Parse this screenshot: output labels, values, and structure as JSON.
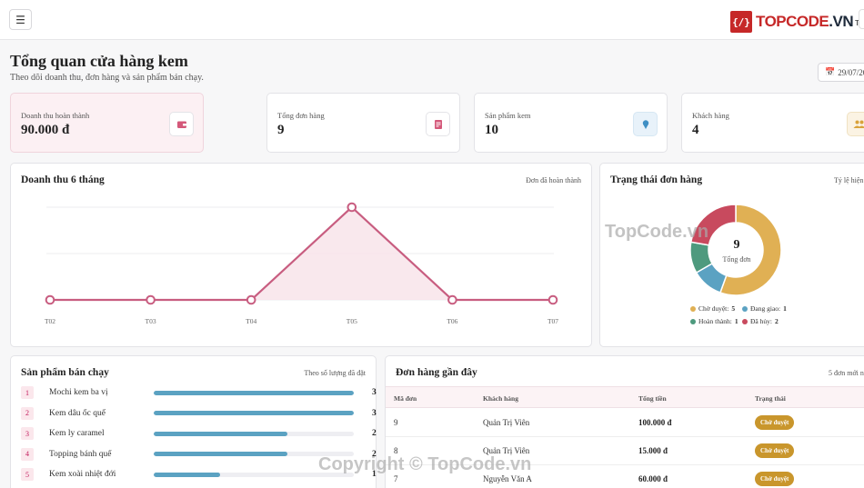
{
  "header": {
    "menu_icon": "hamburger-icon",
    "logo_mark": "{/}",
    "logo_red": "TOPCODE",
    "logo_dark": ".VN",
    "logo_suffix": "Tiền"
  },
  "page": {
    "title": "Tổng quan cửa hàng kem",
    "subtitle": "Theo dõi doanh thu, đơn hàng và sản phẩm bán chạy.",
    "date": "29/07/20"
  },
  "stats": [
    {
      "label": "Doanh thu hoàn thành",
      "value": "90.000 đ",
      "icon": "wallet-icon",
      "color": "#d4587a"
    },
    {
      "label": "Tổng đơn hàng",
      "value": "9",
      "icon": "receipt-icon",
      "color": "#d4587a"
    },
    {
      "label": "Sản phẩm kem",
      "value": "10",
      "icon": "ice-cream-icon",
      "color": "#3f8fc4"
    },
    {
      "label": "Khách hàng",
      "value": "4",
      "icon": "users-icon",
      "color": "#d9a23a"
    }
  ],
  "revenue": {
    "title": "Doanh thu 6 tháng",
    "note": "Đơn đã hoàn thành"
  },
  "chart_data": {
    "type": "area",
    "categories": [
      "T02",
      "T03",
      "T04",
      "T05",
      "T06",
      "T07"
    ],
    "values": [
      0,
      0,
      0,
      90000,
      0,
      0
    ],
    "ylim": [
      0,
      90000
    ],
    "grid": true,
    "color": "#c85d80"
  },
  "status": {
    "title": "Trạng thái đơn hàng",
    "note": "Tỷ lệ hiện",
    "total": "9",
    "total_label": "Tổng đơn",
    "items": [
      {
        "label": "Chờ duyệt:",
        "count": "5",
        "value": 5,
        "color": "#e0b054"
      },
      {
        "label": "Đang giao:",
        "count": "1",
        "value": 1,
        "color": "#5ba2c2"
      },
      {
        "label": "Hoàn thành:",
        "count": "1",
        "value": 1,
        "color": "#4e9a7e"
      },
      {
        "label": "Đã hủy:",
        "count": "2",
        "value": 2,
        "color": "#c84a5e"
      }
    ]
  },
  "bestsellers": {
    "title": "Sản phẩm bán chạy",
    "note": "Theo số lượng đã đặt",
    "max": 3,
    "items": [
      {
        "rank": "1",
        "name": "Mochi kem ba vị",
        "qty": "3",
        "value": 3
      },
      {
        "rank": "2",
        "name": "Kem dâu ốc quế",
        "qty": "3",
        "value": 3
      },
      {
        "rank": "3",
        "name": "Kem ly caramel",
        "qty": "2",
        "value": 2
      },
      {
        "rank": "4",
        "name": "Topping bánh quế",
        "qty": "2",
        "value": 2
      },
      {
        "rank": "5",
        "name": "Kem xoài nhiệt đới",
        "qty": "1",
        "value": 1
      }
    ]
  },
  "orders": {
    "title": "Đơn hàng gần đây",
    "note": "5 đơn mới nh",
    "columns": [
      "Mã đơn",
      "Khách hàng",
      "Tổng tiền",
      "Trạng thái"
    ],
    "rows": [
      {
        "id": "9",
        "customer": "Quản Trị Viên",
        "total": "100.000 đ",
        "status": "Chờ duyệt"
      },
      {
        "id": "8",
        "customer": "Quản Trị Viên",
        "total": "15.000 đ",
        "status": "Chờ duyệt"
      },
      {
        "id": "7",
        "customer": "Nguyễn Văn A",
        "total": "60.000 đ",
        "status": "Chờ duyệt"
      }
    ]
  },
  "watermarks": {
    "mid": "TopCode.vn",
    "bottom": "Copyright © TopCode.vn"
  }
}
